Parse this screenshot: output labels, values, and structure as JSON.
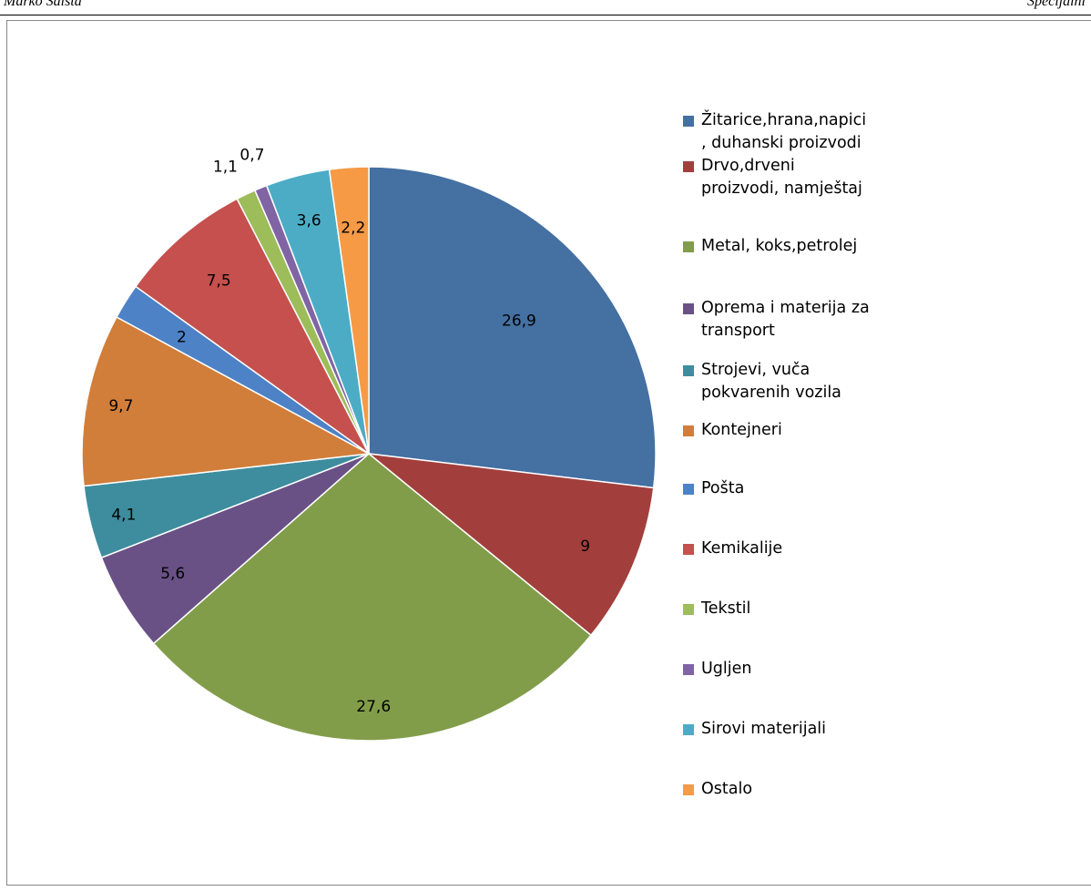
{
  "header": {
    "left_text": "Marko Šalsta",
    "right_text": "Specijalni"
  },
  "chart_data": {
    "type": "pie",
    "title": "",
    "slices": [
      {
        "name": "Žitarice,hrana,napici\n, duhanski proizvodi",
        "value": 26.9,
        "label": "26,9",
        "color": "#4470A2"
      },
      {
        "name": "Drvo,drveni\nproizvodi, namještaj",
        "value": 9,
        "label": "9",
        "color": "#A23F3C"
      },
      {
        "name": "Metal, koks,petrolej",
        "value": 27.6,
        "label": "27,6",
        "color": "#829D4A"
      },
      {
        "name": "Oprema i materija za\ntransport",
        "value": 5.6,
        "label": "5,6",
        "color": "#6A5185"
      },
      {
        "name": "Strojevi, vuča\npokvarenih vozila",
        "value": 4.1,
        "label": "4,1",
        "color": "#3D8D9E"
      },
      {
        "name": "Kontejneri",
        "value": 9.7,
        "label": "9,7",
        "color": "#D17E3A"
      },
      {
        "name": "Pošta",
        "value": 2,
        "label": "2",
        "color": "#4E82C6"
      },
      {
        "name": "Kemikalije",
        "value": 7.5,
        "label": "7,5",
        "color": "#C5504D"
      },
      {
        "name": "Tekstil",
        "value": 1.1,
        "label": "1,1",
        "color": "#9DBC5A"
      },
      {
        "name": "Ugljen",
        "value": 0.7,
        "label": "0,7",
        "color": "#8064A4"
      },
      {
        "name": "Sirovi materijali",
        "value": 3.6,
        "label": "3,6",
        "color": "#4CACC6"
      },
      {
        "name": "Ostalo",
        "value": 2.2,
        "label": "2,2",
        "color": "#F69A46"
      }
    ],
    "legend_position": "right"
  }
}
